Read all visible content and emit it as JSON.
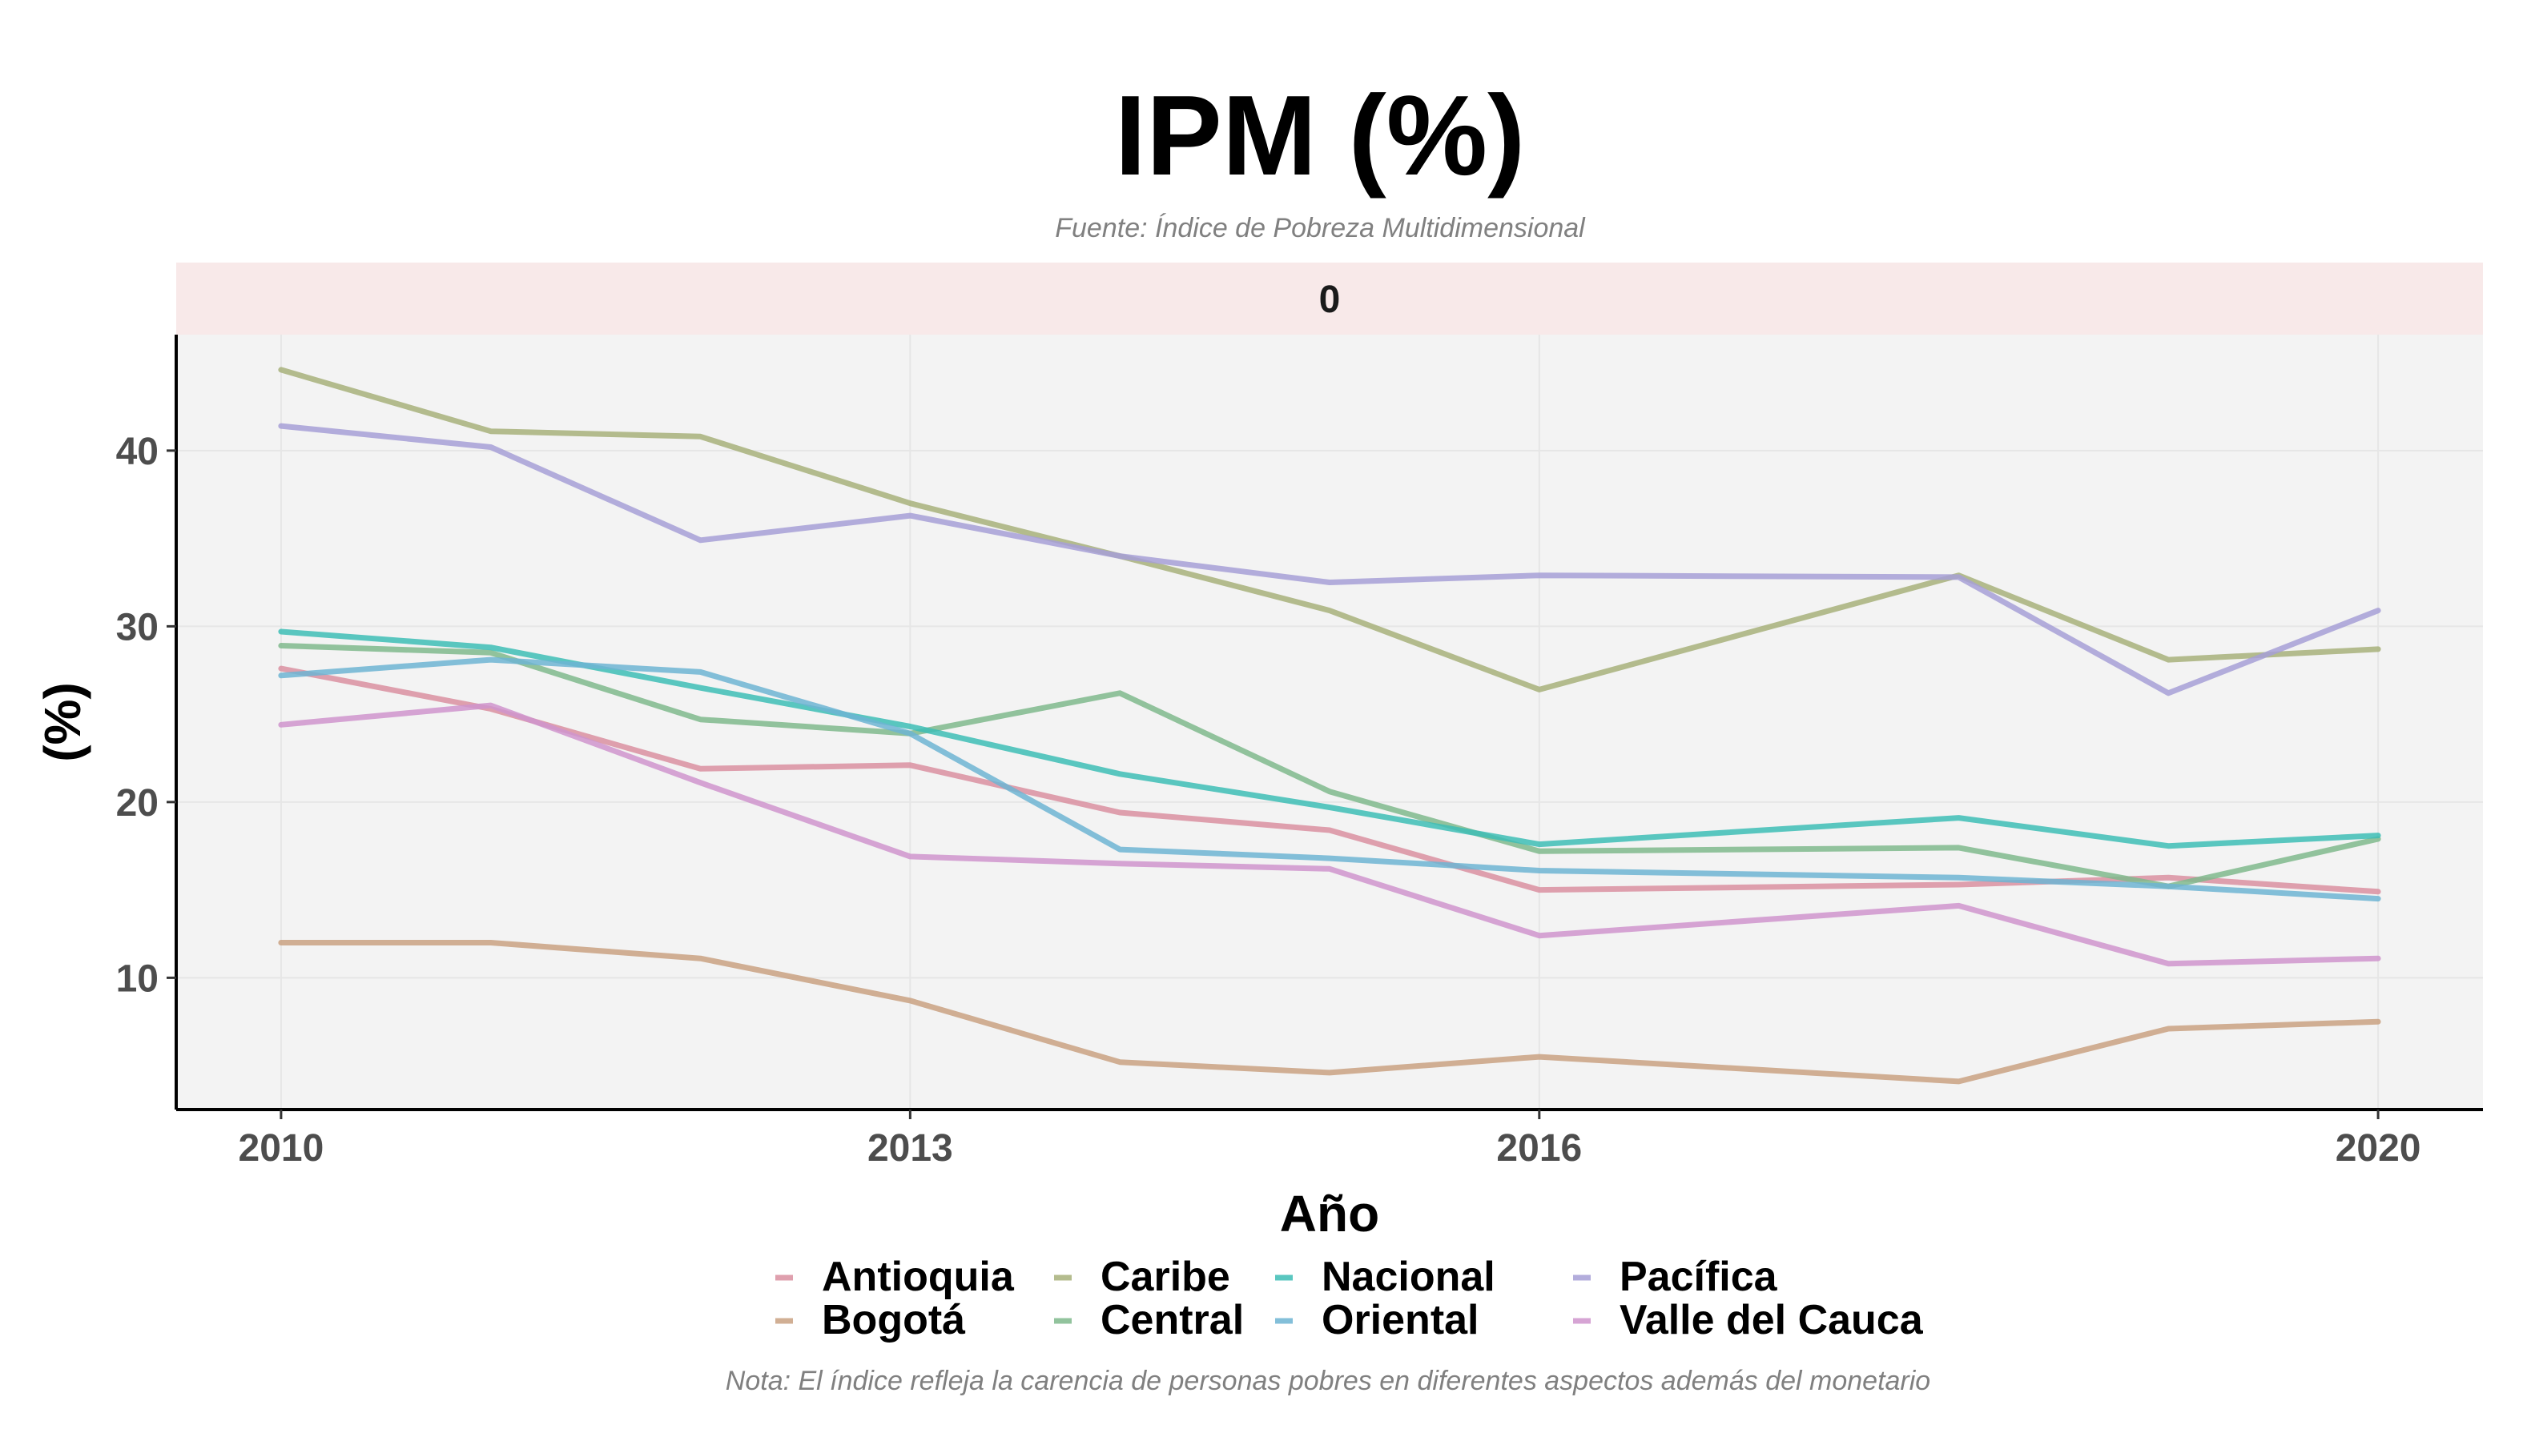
{
  "chart_data": {
    "type": "line",
    "title": "IPM (%)",
    "subtitle": "Fuente: Índice de Pobreza Multidimensional",
    "facet_label": "0",
    "xlabel": "Año",
    "ylabel": "(%)",
    "caption": "Nota: El índice refleja la carencia de personas pobres en diferentes aspectos además del monetario",
    "xlim": [
      2009.5,
      2020.5
    ],
    "ylim": [
      2.5,
      46.6
    ],
    "x_ticks": [
      2010,
      2013,
      2016,
      2020
    ],
    "y_ticks": [
      10,
      20,
      30,
      40
    ],
    "grid": true,
    "legend_position": "bottom",
    "x": [
      2010,
      2011,
      2012,
      2013,
      2014,
      2015,
      2016,
      2018,
      2019,
      2020
    ],
    "series": [
      {
        "name": "Antioquia",
        "color": "#d98fa0",
        "values": [
          27.6,
          25.3,
          21.9,
          22.1,
          19.4,
          18.4,
          15.0,
          15.3,
          15.7,
          14.9
        ]
      },
      {
        "name": "Bogotá",
        "color": "#c9a181",
        "values": [
          12.0,
          12.0,
          11.1,
          8.7,
          5.2,
          4.6,
          5.5,
          4.1,
          7.1,
          7.5
        ]
      },
      {
        "name": "Caribe",
        "color": "#a7b07a",
        "values": [
          44.6,
          41.1,
          40.8,
          37.0,
          34.0,
          30.9,
          26.4,
          32.9,
          28.1,
          28.7
        ]
      },
      {
        "name": "Central",
        "color": "#7fb88c",
        "values": [
          28.9,
          28.5,
          24.7,
          23.9,
          26.2,
          20.6,
          17.2,
          17.4,
          15.2,
          17.9
        ]
      },
      {
        "name": "Nacional",
        "color": "#3dbdb5",
        "values": [
          29.7,
          28.8,
          26.5,
          24.3,
          21.6,
          19.7,
          17.6,
          19.1,
          17.5,
          18.1
        ]
      },
      {
        "name": "Oriental",
        "color": "#6db4d2",
        "values": [
          27.2,
          28.1,
          27.4,
          23.9,
          17.3,
          16.8,
          16.1,
          15.7,
          15.2,
          14.5
        ]
      },
      {
        "name": "Pacífica",
        "color": "#a69fd6",
        "values": [
          41.4,
          40.2,
          34.9,
          36.3,
          34.0,
          32.5,
          32.9,
          32.8,
          26.2,
          30.9
        ]
      },
      {
        "name": "Valle del Cauca",
        "color": "#cf94cc",
        "values": [
          24.4,
          25.5,
          21.1,
          16.9,
          16.5,
          16.2,
          12.4,
          14.1,
          10.8,
          11.1
        ]
      }
    ],
    "colors": {
      "panel": "#f3f3f3",
      "strip": "#f8e9e9",
      "grid": "#e6e6e6"
    }
  }
}
